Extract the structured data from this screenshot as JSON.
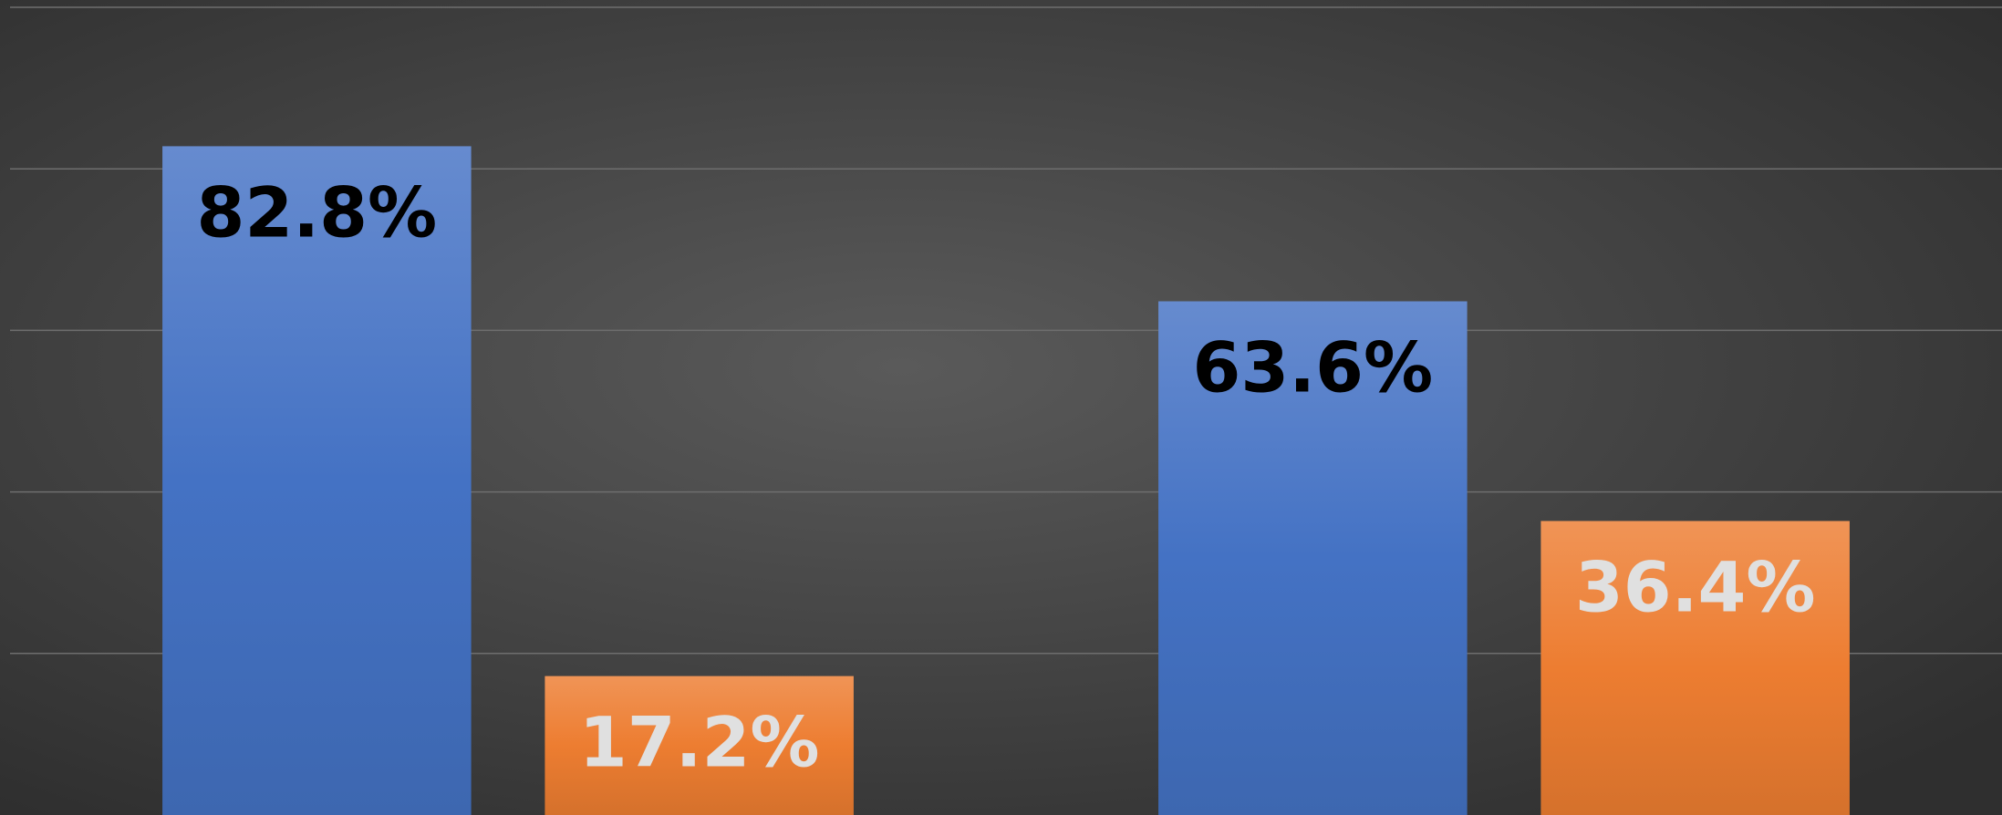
{
  "chart_data": {
    "type": "bar",
    "categories": [
      null,
      null
    ],
    "series": [
      {
        "color": "#4472c4",
        "values": [
          82.8,
          63.6
        ],
        "value_labels": [
          "82.8%",
          "63.6%"
        ],
        "label_color": "#000000"
      },
      {
        "color": "#ed7d31",
        "values": [
          17.2,
          36.4
        ],
        "value_labels": [
          "17.2%",
          "36.4%"
        ],
        "label_color": "#e0e0e0"
      }
    ],
    "ylim": [
      0,
      100
    ],
    "yticks": [
      20,
      40,
      60,
      80,
      100
    ],
    "grid": true
  }
}
